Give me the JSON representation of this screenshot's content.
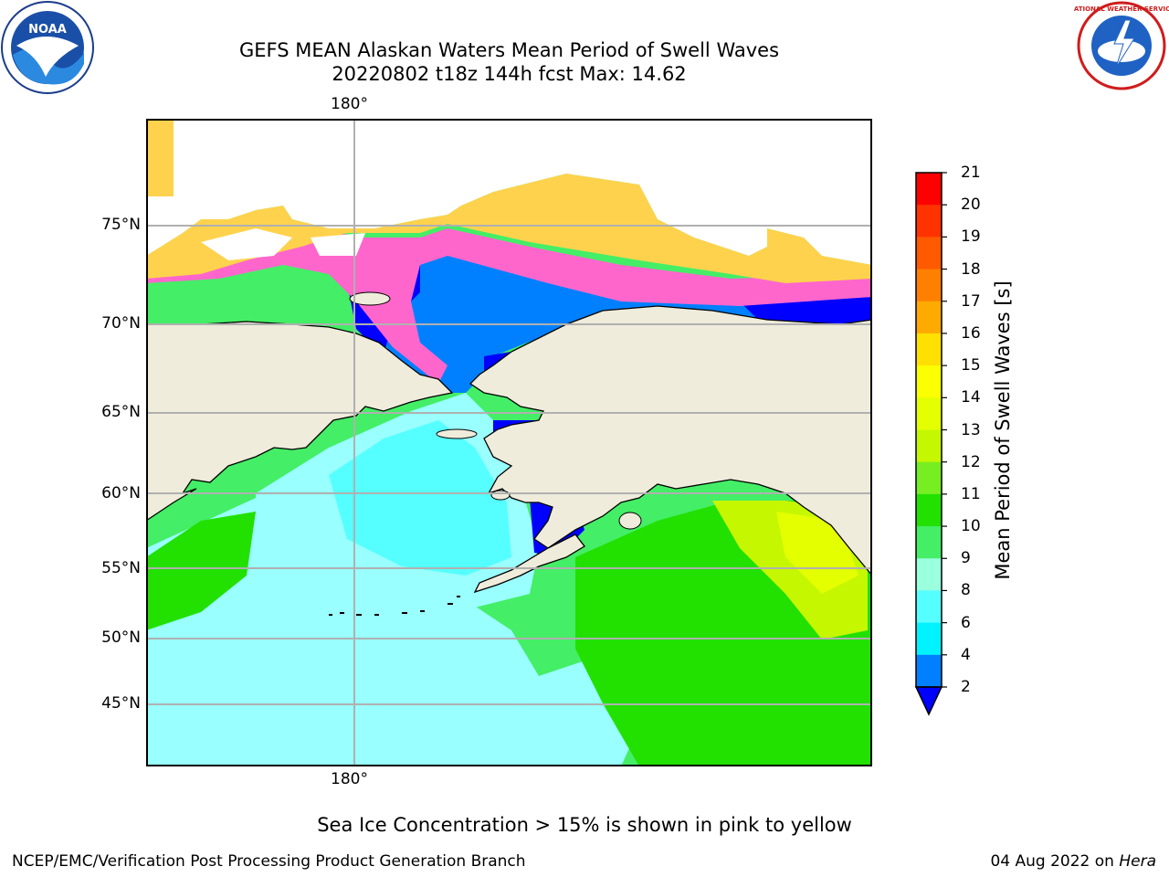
{
  "title_line1": "GEFS MEAN Alaskan Waters Mean Period of Swell Waves",
  "title_line2": "20220802 t18z 144h fcst   Max: 14.62",
  "lon_label_top": "180°",
  "lon_label_bottom": "180°",
  "lat_labels": [
    "75°N",
    "70°N",
    "65°N",
    "60°N",
    "55°N",
    "50°N",
    "45°N"
  ],
  "colorbar": {
    "label": "Mean Period of Swell Waves [s]",
    "ticks": [
      "21",
      "20",
      "19",
      "18",
      "17",
      "16",
      "15",
      "14",
      "13",
      "12",
      "11",
      "10",
      "9",
      "8",
      "6",
      "4",
      "2"
    ],
    "colors": [
      "#ff0000",
      "#ff3300",
      "#ff5a00",
      "#ff8000",
      "#ffaa00",
      "#ffe000",
      "#fbff00",
      "#e3ff00",
      "#c5f700",
      "#77ee22",
      "#22e000",
      "#44ee66",
      "#99ffdd",
      "#55ffff",
      "#00f2ff",
      "#0080ff"
    ],
    "extend_color": "#0000ff"
  },
  "map_colors": {
    "land": "#efecdc",
    "ice": "#ffd24d",
    "ice_edge": "#ff66cc",
    "swell_short": "#0080ff",
    "swell_very_short": "#0000ff",
    "swell_mid": "#99ffff",
    "swell_cyan": "#55ffff",
    "swell_long": "#22e000",
    "swell_9_10": "#44ee66",
    "swell_yellow": "#c5f700"
  },
  "footer_note": "Sea Ice Concentration > 15% is shown in pink to yellow",
  "credit": "NCEP/EMC/Verification Post Processing Product Generation Branch",
  "date_text": "04 Aug 2022 on ",
  "date_machine": "Hera",
  "logos": {
    "left": "NOAA",
    "right": "NATIONAL WEATHER SERVICE"
  }
}
